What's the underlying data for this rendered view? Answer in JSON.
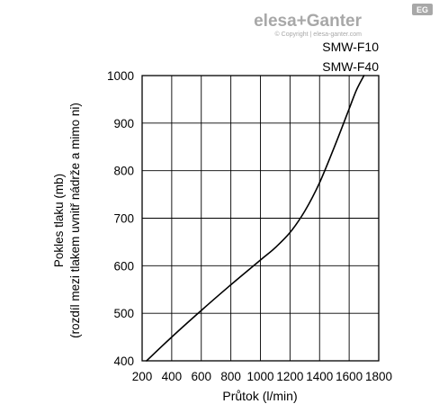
{
  "brand": {
    "logo_text": "elesa+Ganter",
    "badge": "EG",
    "copyright": "© Copyright | elesa-ganter.com"
  },
  "chart_data": {
    "type": "line",
    "xlabel": "Průtok (l/min)",
    "ylabel_lines": [
      "Pokles tlaku (mb)",
      "(rozdíl mezi tlakem uvnitř nádrže a mimo ni)"
    ],
    "series_labels": [
      "SMW-F10",
      "SMW-F40"
    ],
    "xlim": [
      200,
      1800
    ],
    "ylim": [
      400,
      1000
    ],
    "x_ticks": [
      200,
      400,
      600,
      800,
      1000,
      1200,
      1400,
      1600,
      1800
    ],
    "y_ticks": [
      400,
      500,
      600,
      700,
      800,
      900,
      1000
    ],
    "grid": true,
    "series": [
      {
        "x": [
          230,
          400,
          600,
          800,
          1000,
          1100,
          1200,
          1300,
          1400,
          1500,
          1600,
          1650,
          1700
        ],
        "y": [
          400,
          450,
          506,
          560,
          612,
          638,
          670,
          715,
          775,
          850,
          930,
          970,
          1000
        ]
      }
    ],
    "line_color": "#000000"
  }
}
